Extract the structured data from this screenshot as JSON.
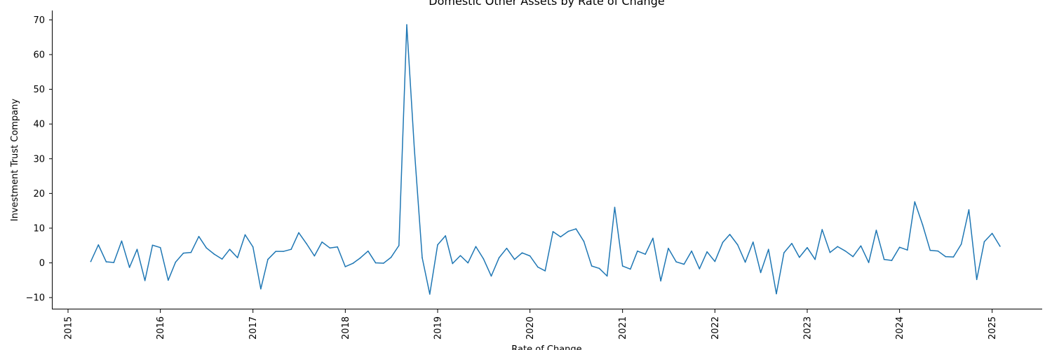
{
  "chart_data": {
    "type": "line",
    "title": "Domestic Other Assets by Rate of Change",
    "xlabel": "Rate of Change",
    "ylabel": "Investment Trust Company",
    "xlim": [
      "2014-11-01",
      "2025-07-15"
    ],
    "ylim": [
      -13.2,
      72.7
    ],
    "grid": false,
    "x_ticks": [
      "2015",
      "2016",
      "2017",
      "2018",
      "2019",
      "2020",
      "2021",
      "2022",
      "2023",
      "2024",
      "2025"
    ],
    "y_ticks": [
      -10,
      0,
      10,
      20,
      30,
      40,
      50,
      60,
      70
    ],
    "series": [
      {
        "color": "#1f77b4",
        "start": "2015-04",
        "values": [
          0.4,
          5.2,
          0.3,
          0.1,
          6.3,
          -1.3,
          3.9,
          -5.1,
          5.1,
          4.4,
          -5.0,
          0.2,
          2.8,
          3.0,
          7.6,
          4.3,
          2.5,
          1.1,
          3.9,
          1.5,
          8.1,
          4.6,
          -7.5,
          1.0,
          3.3,
          3.3,
          3.9,
          8.7,
          5.5,
          2.0,
          6.0,
          4.3,
          4.6,
          -1.1,
          -0.1,
          1.4,
          3.4,
          0.0,
          -0.1,
          1.6,
          5.0,
          68.6,
          32.8,
          1.5,
          -9.0,
          5.2,
          7.8,
          -0.2,
          2.1,
          0.0,
          4.7,
          1.2,
          -3.8,
          1.5,
          4.2,
          1.0,
          2.9,
          2.0,
          -1.2,
          -2.3,
          9.0,
          7.5,
          9.1,
          9.8,
          6.2,
          -0.9,
          -1.6,
          -3.8,
          16.0,
          -0.9,
          -1.8,
          3.4,
          2.5,
          7.1,
          -5.2,
          4.2,
          0.3,
          -0.4,
          3.4,
          -1.7,
          3.2,
          0.4,
          5.9,
          8.2,
          5.2,
          0.2,
          6.0,
          -2.8,
          3.9,
          -8.9,
          2.9,
          5.6,
          1.6,
          4.4,
          1.0,
          9.6,
          3.0,
          4.7,
          3.4,
          1.8,
          4.9,
          0.1,
          9.4,
          1.0,
          0.7,
          4.5,
          3.7,
          17.6,
          11.0,
          3.6,
          3.4,
          1.8,
          1.7,
          5.4,
          15.3,
          -4.8,
          6.1,
          8.5,
          4.8
        ]
      }
    ]
  }
}
